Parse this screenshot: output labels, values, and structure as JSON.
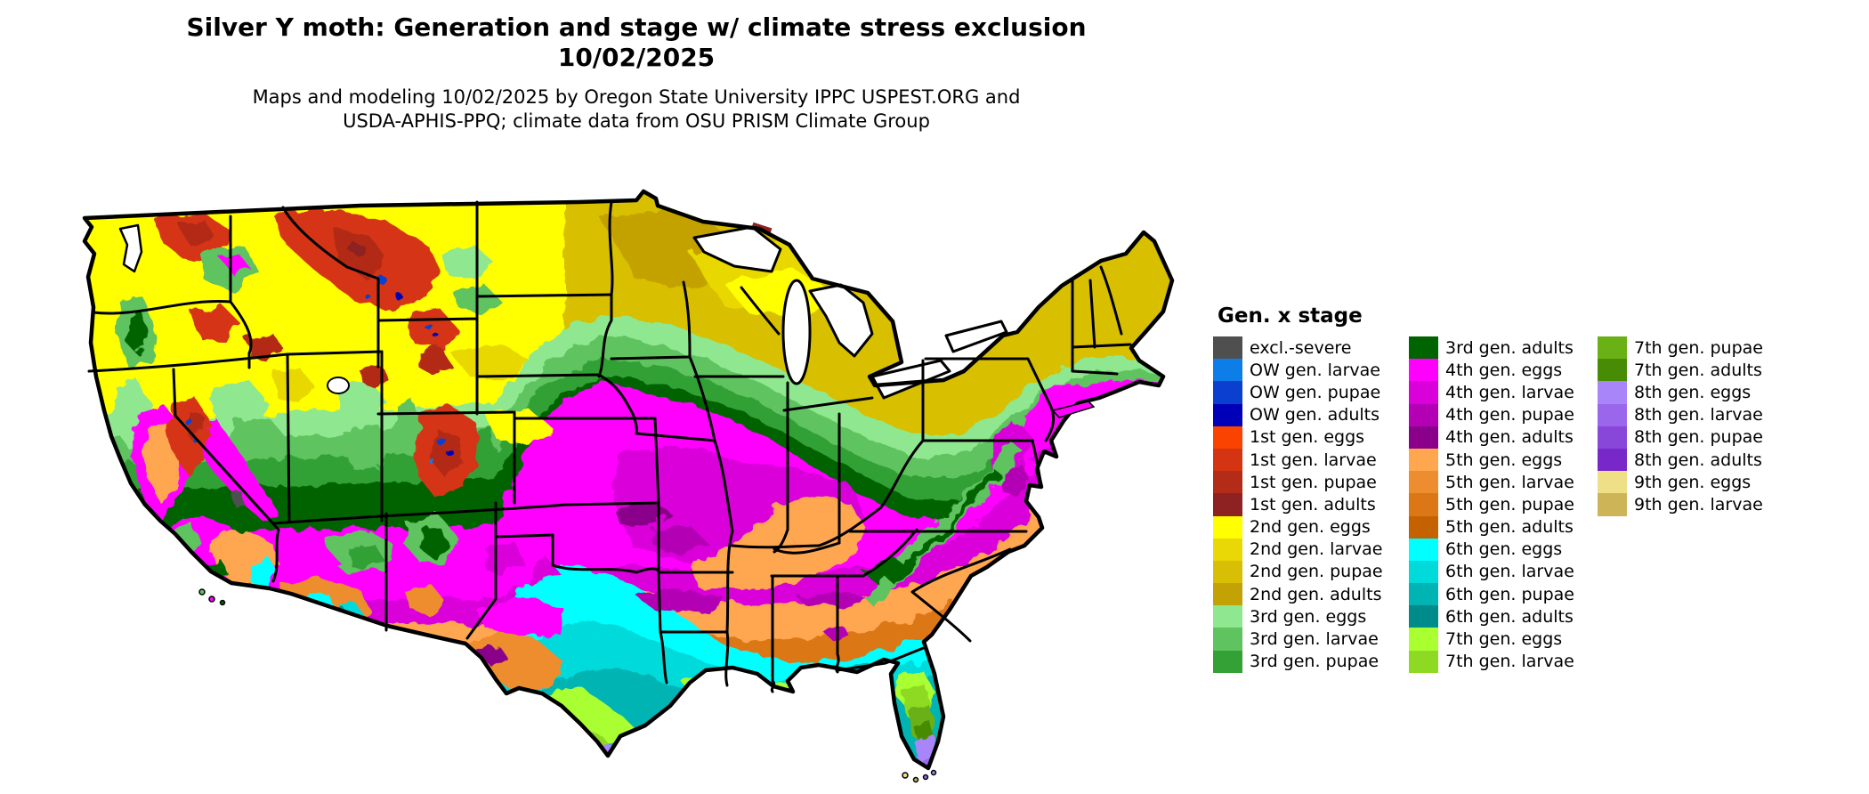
{
  "header": {
    "title_line1": "Silver Y moth: Generation and stage w/ climate stress exclusion",
    "title_line2": "10/02/2025",
    "subtitle_line1": "Maps and modeling 10/02/2025 by Oregon State University IPPC USPEST.ORG and",
    "subtitle_line2": "USDA-APHIS-PPQ; climate data from OSU PRISM Climate Group"
  },
  "legend": {
    "title": "Gen. x stage",
    "columns": [
      [
        {
          "label": "excl.-severe",
          "color_key": "excl_severe"
        },
        {
          "label": "OW gen. larvae",
          "color_key": "ow_larvae"
        },
        {
          "label": "OW gen. pupae",
          "color_key": "ow_pupae"
        },
        {
          "label": "OW gen. adults",
          "color_key": "ow_adults"
        },
        {
          "label": "1st gen. eggs",
          "color_key": "g1_eggs"
        },
        {
          "label": "1st gen. larvae",
          "color_key": "g1_larvae"
        },
        {
          "label": "1st gen. pupae",
          "color_key": "g1_pupae"
        },
        {
          "label": "1st gen. adults",
          "color_key": "g1_adults"
        },
        {
          "label": "2nd gen. eggs",
          "color_key": "g2_eggs"
        },
        {
          "label": "2nd gen. larvae",
          "color_key": "g2_larvae"
        },
        {
          "label": "2nd gen. pupae",
          "color_key": "g2_pupae"
        },
        {
          "label": "2nd gen. adults",
          "color_key": "g2_adults"
        },
        {
          "label": "3rd gen. eggs",
          "color_key": "g3_eggs"
        },
        {
          "label": "3rd gen. larvae",
          "color_key": "g3_larvae"
        },
        {
          "label": "3rd gen. pupae",
          "color_key": "g3_pupae"
        }
      ],
      [
        {
          "label": "3rd gen. adults",
          "color_key": "g3_adults"
        },
        {
          "label": "4th gen. eggs",
          "color_key": "g4_eggs"
        },
        {
          "label": "4th gen. larvae",
          "color_key": "g4_larvae"
        },
        {
          "label": "4th gen. pupae",
          "color_key": "g4_pupae"
        },
        {
          "label": "4th gen. adults",
          "color_key": "g4_adults"
        },
        {
          "label": "5th gen. eggs",
          "color_key": "g5_eggs"
        },
        {
          "label": "5th gen. larvae",
          "color_key": "g5_larvae"
        },
        {
          "label": "5th gen. pupae",
          "color_key": "g5_pupae"
        },
        {
          "label": "5th gen. adults",
          "color_key": "g5_adults"
        },
        {
          "label": "6th gen. eggs",
          "color_key": "g6_eggs"
        },
        {
          "label": "6th gen. larvae",
          "color_key": "g6_larvae"
        },
        {
          "label": "6th gen. pupae",
          "color_key": "g6_pupae"
        },
        {
          "label": "6th gen. adults",
          "color_key": "g6_adults"
        },
        {
          "label": "7th gen. eggs",
          "color_key": "g7_eggs"
        },
        {
          "label": "7th gen. larvae",
          "color_key": "g7_larvae"
        }
      ],
      [
        {
          "label": "7th gen. pupae",
          "color_key": "g7_pupae"
        },
        {
          "label": "7th gen. adults",
          "color_key": "g7_adults"
        },
        {
          "label": "8th gen. eggs",
          "color_key": "g8_eggs"
        },
        {
          "label": "8th gen. larvae",
          "color_key": "g8_larvae"
        },
        {
          "label": "8th gen. pupae",
          "color_key": "g8_pupae"
        },
        {
          "label": "8th gen. adults",
          "color_key": "g8_adults"
        },
        {
          "label": "9th gen. eggs",
          "color_key": "g9_eggs"
        },
        {
          "label": "9th gen. larvae",
          "color_key": "g9_larvae"
        }
      ]
    ]
  },
  "palette": {
    "excl_severe": "#4f4f4f",
    "ow_larvae": "#0d7ee8",
    "ow_pupae": "#0b3fd0",
    "ow_adults": "#0000b8",
    "g1_eggs": "#fa4300",
    "g1_larvae": "#d53413",
    "g1_pupae": "#b22c18",
    "g1_adults": "#8e2121",
    "g2_eggs": "#ffff00",
    "g2_larvae": "#e9d806",
    "g2_pupae": "#d8bf05",
    "g2_adults": "#c3a206",
    "g3_eggs": "#8fe88f",
    "g3_larvae": "#5fc360",
    "g3_pupae": "#33a135",
    "g3_adults": "#006400",
    "g4_eggs": "#ff00ff",
    "g4_larvae": "#da00da",
    "g4_pupae": "#b400b4",
    "g4_adults": "#8b008b",
    "g5_eggs": "#ffa651",
    "g5_larvae": "#ee8d2f",
    "g5_pupae": "#dc7715",
    "g5_adults": "#c56200",
    "g6_eggs": "#00ffff",
    "g6_larvae": "#00dada",
    "g6_pupae": "#00b4b4",
    "g6_adults": "#008b8b",
    "g7_eggs": "#aaff30",
    "g7_larvae": "#8ed922",
    "g7_pupae": "#69b115",
    "g7_adults": "#478c04",
    "g8_eggs": "#a985fa",
    "g8_larvae": "#9a67ec",
    "g8_pupae": "#8947da",
    "g8_adults": "#7827c8",
    "g9_eggs": "#efdf87",
    "g9_larvae": "#cdb557"
  },
  "map": {
    "region": "Continental United States",
    "water_color": "#ffffff",
    "border_color": "#000000"
  }
}
